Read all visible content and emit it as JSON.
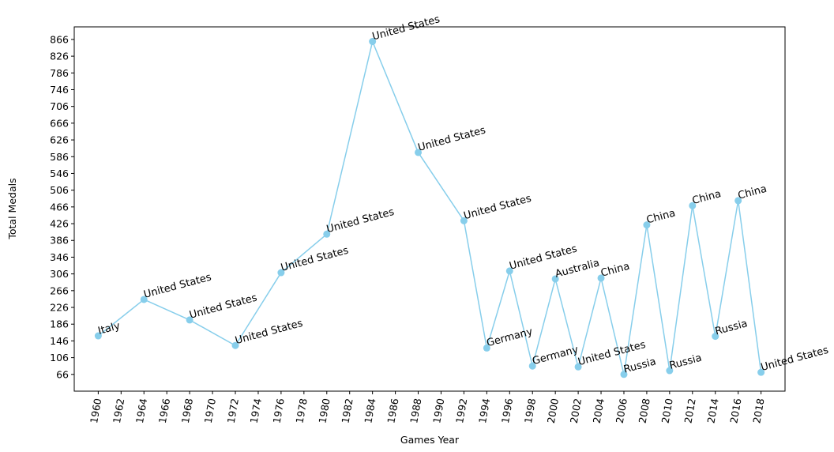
{
  "chart_data": {
    "type": "line",
    "title": "",
    "xlabel": "Games Year",
    "ylabel": "Total Medals",
    "grid": false,
    "color": "#87CEEB",
    "x_ticks": [
      1960,
      1962,
      1964,
      1966,
      1968,
      1970,
      1972,
      1974,
      1976,
      1978,
      1980,
      1982,
      1984,
      1986,
      1988,
      1990,
      1992,
      1994,
      1996,
      1998,
      2000,
      2002,
      2004,
      2006,
      2008,
      2010,
      2012,
      2014,
      2016,
      2018
    ],
    "y_ticks": [
      66,
      106,
      146,
      186,
      226,
      266,
      306,
      346,
      386,
      426,
      466,
      506,
      546,
      586,
      626,
      666,
      706,
      746,
      786,
      826,
      866
    ],
    "xlim": [
      1957.9,
      2020.1
    ],
    "ylim": [
      26,
      896
    ],
    "points": [
      {
        "x": 1960,
        "y": 158,
        "label": "Italy"
      },
      {
        "x": 1964,
        "y": 245,
        "label": "United States"
      },
      {
        "x": 1968,
        "y": 196,
        "label": "United States"
      },
      {
        "x": 1972,
        "y": 135,
        "label": "United States"
      },
      {
        "x": 1976,
        "y": 309,
        "label": "United States"
      },
      {
        "x": 1980,
        "y": 401,
        "label": "United States"
      },
      {
        "x": 1984,
        "y": 861,
        "label": "United States"
      },
      {
        "x": 1988,
        "y": 596,
        "label": "United States"
      },
      {
        "x": 1992,
        "y": 433,
        "label": "United States"
      },
      {
        "x": 1994,
        "y": 129,
        "label": "Germany"
      },
      {
        "x": 1996,
        "y": 313,
        "label": "United States"
      },
      {
        "x": 1998,
        "y": 86,
        "label": "Germany"
      },
      {
        "x": 2000,
        "y": 294,
        "label": "Australia"
      },
      {
        "x": 2002,
        "y": 84,
        "label": "United States"
      },
      {
        "x": 2004,
        "y": 296,
        "label": "China"
      },
      {
        "x": 2006,
        "y": 66,
        "label": "Russia"
      },
      {
        "x": 2008,
        "y": 423,
        "label": "China"
      },
      {
        "x": 2010,
        "y": 75,
        "label": "Russia"
      },
      {
        "x": 2012,
        "y": 469,
        "label": "China"
      },
      {
        "x": 2014,
        "y": 157,
        "label": "Russia"
      },
      {
        "x": 2016,
        "y": 481,
        "label": "China"
      },
      {
        "x": 2018,
        "y": 71,
        "label": "United States"
      }
    ]
  }
}
